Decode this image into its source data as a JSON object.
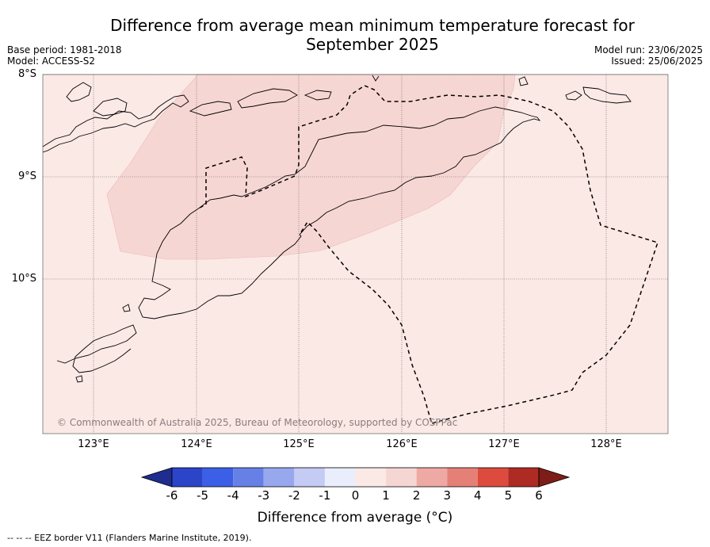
{
  "title": "Difference from average mean minimum temperature forecast for",
  "title_line2": "September 2025",
  "meta": {
    "base_period": "Base period: 1981-2018",
    "model": "Model: ACCESS-S2",
    "model_run": "Model run: 23/06/2025",
    "issued": "Issued: 25/06/2025"
  },
  "map": {
    "lat_labels": [
      "8°S",
      "9°S",
      "10°S"
    ],
    "lon_labels": [
      "123°E",
      "124°E",
      "125°E",
      "126°E",
      "127°E",
      "128°E"
    ],
    "background_color": "#fbe9e6",
    "anomaly_region_color": "#f6d6d3",
    "copyright": "© Commonwealth of Australia 2025, Bureau of Meteorology, supported by COSPPac"
  },
  "colorbar": {
    "ticks": [
      "-6",
      "-5",
      "-4",
      "-3",
      "-2",
      "-1",
      "0",
      "1",
      "2",
      "3",
      "4",
      "5",
      "6"
    ],
    "colors": [
      "#1f2d8e",
      "#2b44c8",
      "#3b5fe6",
      "#6680e6",
      "#97a8ee",
      "#c4cbf4",
      "#eaedfb",
      "#fbe9e6",
      "#f6d6d3",
      "#eea9a4",
      "#e58076",
      "#dc4b3e",
      "#ad2b22",
      "#7e1d18"
    ],
    "title": "Difference from average (°C)"
  },
  "footnote": "-- -- -- EEZ border V11 (Flanders Marine Institute, 2019)."
}
